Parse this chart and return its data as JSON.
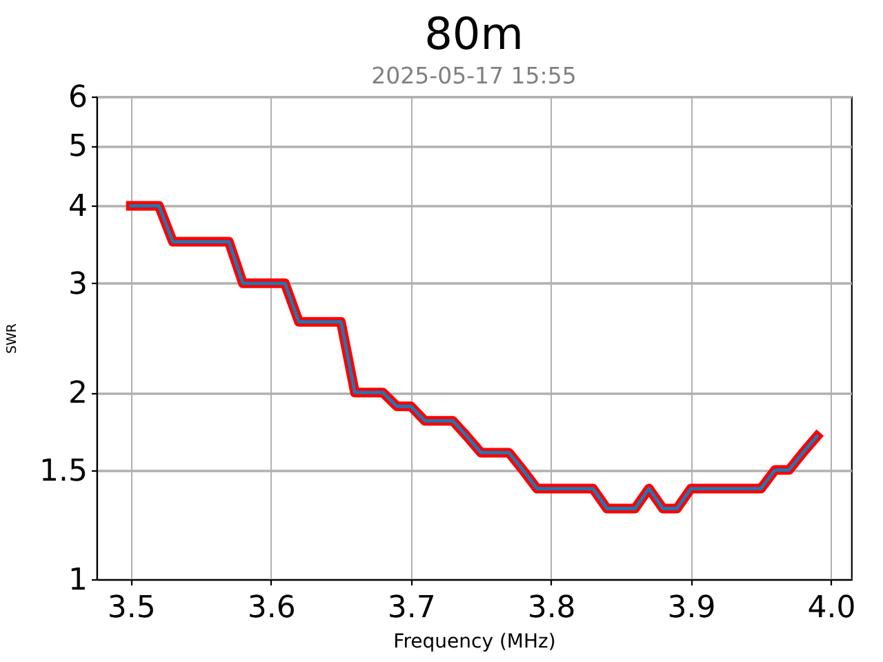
{
  "chart_data": {
    "type": "line",
    "title": "80m",
    "subtitle": "2025-05-17 15:55",
    "xlabel": "Frequency (MHz)",
    "ylabel": "SWR",
    "x": [
      3.5,
      3.51,
      3.52,
      3.53,
      3.54,
      3.55,
      3.56,
      3.57,
      3.58,
      3.59,
      3.6,
      3.61,
      3.62,
      3.63,
      3.64,
      3.65,
      3.66,
      3.67,
      3.68,
      3.69,
      3.7,
      3.71,
      3.72,
      3.73,
      3.74,
      3.75,
      3.76,
      3.77,
      3.78,
      3.79,
      3.8,
      3.81,
      3.82,
      3.83,
      3.84,
      3.85,
      3.86,
      3.87,
      3.88,
      3.89,
      3.9,
      3.91,
      3.92,
      3.93,
      3.94,
      3.95,
      3.96,
      3.97,
      3.98,
      3.99
    ],
    "series": [
      {
        "color": "#ff0000",
        "values": [
          4.0,
          4.0,
          4.0,
          3.5,
          3.5,
          3.5,
          3.5,
          3.5,
          3.0,
          3.0,
          3.0,
          3.0,
          2.6,
          2.6,
          2.6,
          2.6,
          2.0,
          2.0,
          2.0,
          1.9,
          1.9,
          1.8,
          1.8,
          1.8,
          1.7,
          1.6,
          1.6,
          1.6,
          1.5,
          1.4,
          1.4,
          1.4,
          1.4,
          1.4,
          1.3,
          1.3,
          1.3,
          1.4,
          1.3,
          1.3,
          1.4,
          1.4,
          1.4,
          1.4,
          1.4,
          1.4,
          1.5,
          1.5,
          1.6,
          1.7
        ]
      },
      {
        "color": "#1f77b4",
        "values": [
          4.0,
          4.0,
          4.0,
          3.5,
          3.5,
          3.5,
          3.5,
          3.5,
          3.0,
          3.0,
          3.0,
          3.0,
          2.6,
          2.6,
          2.6,
          2.6,
          2.0,
          2.0,
          2.0,
          1.9,
          1.9,
          1.8,
          1.8,
          1.8,
          1.7,
          1.6,
          1.6,
          1.6,
          1.5,
          1.4,
          1.4,
          1.4,
          1.4,
          1.4,
          1.3,
          1.3,
          1.3,
          1.4,
          1.3,
          1.3,
          1.4,
          1.4,
          1.4,
          1.4,
          1.4,
          1.4,
          1.5,
          1.5,
          1.6,
          1.7
        ]
      }
    ],
    "xlim": [
      3.4755,
      4.0145
    ],
    "xticks": [
      3.5,
      3.6,
      3.7,
      3.8,
      3.9,
      {
        "value": 4,
        "label": "4.0"
      }
    ],
    "ylim": [
      1,
      6
    ],
    "yticks": [
      1,
      1.5,
      2,
      3,
      4,
      5,
      6
    ],
    "log": "y",
    "grid": true
  }
}
